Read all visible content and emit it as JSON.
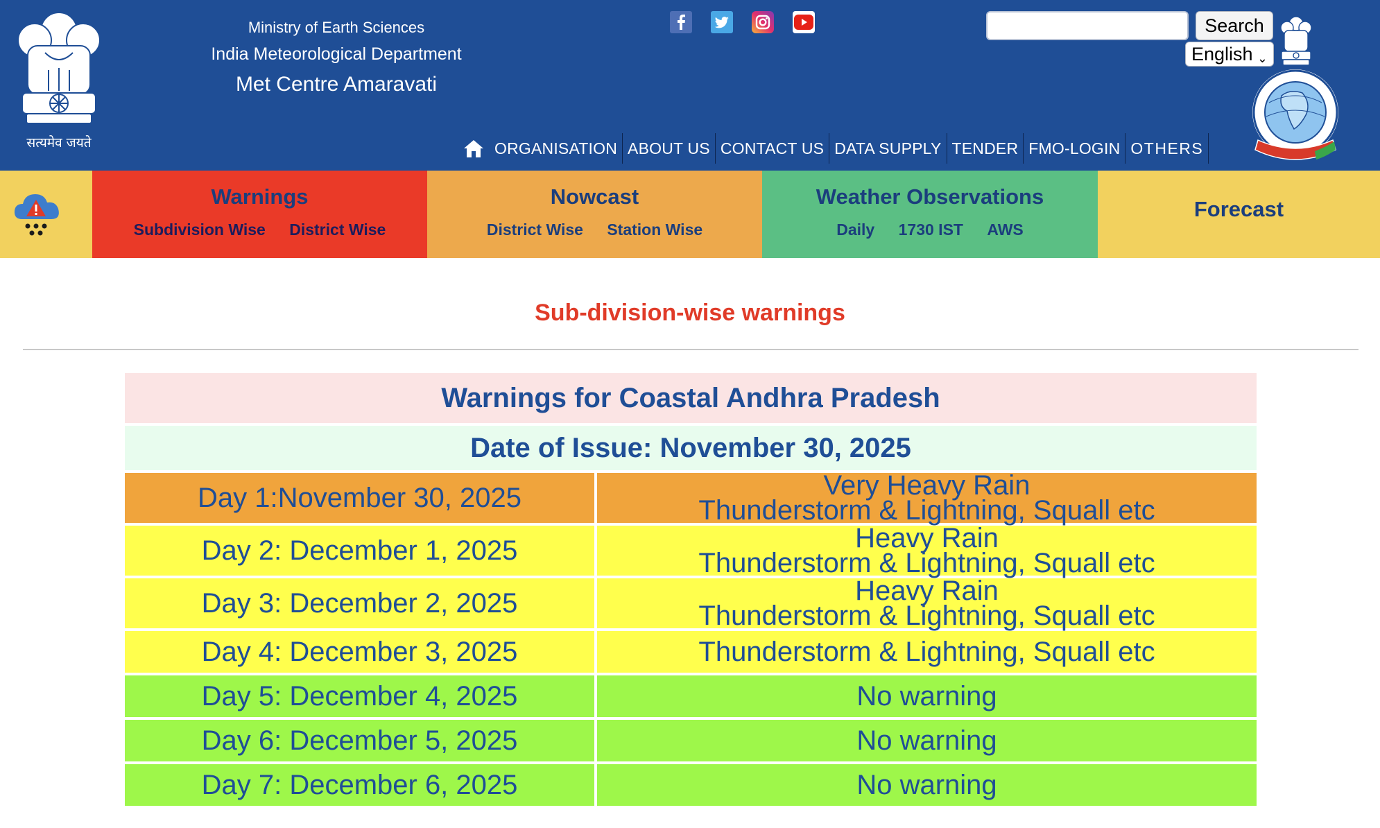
{
  "header": {
    "ministry": "Ministry of Earth Sciences",
    "department": "India Meteorological Department",
    "centre": "Met Centre Amaravati",
    "motto": "सत्यमेव जयते",
    "search_button": "Search",
    "search_placeholder": "",
    "language": "English",
    "social": [
      "facebook-icon",
      "twitter-icon",
      "instagram-icon",
      "youtube-icon"
    ],
    "nav": [
      "ORGANISATION",
      "ABOUT US",
      "CONTACT US",
      "DATA SUPPLY",
      "TENDER",
      "FMO-LOGIN",
      "OTHERS"
    ],
    "colors": {
      "header_bg": "#1f4e96"
    }
  },
  "tabs": {
    "warnings": {
      "title": "Warnings",
      "links": [
        "Subdivision Wise",
        "District Wise"
      ],
      "color": "#ea3a28"
    },
    "nowcast": {
      "title": "Nowcast",
      "links": [
        "District Wise",
        "Station Wise"
      ],
      "color": "#eda94c"
    },
    "observations": {
      "title": "Weather Observations",
      "links": [
        "Daily",
        "1730 IST",
        "AWS"
      ],
      "color": "#5bbf84"
    },
    "forecast": {
      "title": "Forecast",
      "color": "#f2d15e"
    }
  },
  "main": {
    "section_title": "Sub-division-wise warnings",
    "table_title": "Warnings for Coastal Andhra Pradesh",
    "issue_date": "Date of Issue: November 30, 2025",
    "rows": [
      {
        "day": "Day 1:November 30, 2025",
        "lines": [
          "Very Heavy Rain",
          "Thunderstorm & Lightning, Squall etc"
        ],
        "color": "#f0a43c"
      },
      {
        "day": "Day 2: December 1, 2025",
        "lines": [
          "Heavy Rain",
          "Thunderstorm & Lightning, Squall etc"
        ],
        "color": "#ffff4d"
      },
      {
        "day": "Day 3: December 2, 2025",
        "lines": [
          "Heavy Rain",
          "Thunderstorm & Lightning, Squall etc"
        ],
        "color": "#ffff4d"
      },
      {
        "day": "Day 4: December 3, 2025",
        "lines": [
          "Thunderstorm & Lightning, Squall etc"
        ],
        "color": "#ffff4d"
      },
      {
        "day": "Day 5: December 4, 2025",
        "lines": [
          "No warning"
        ],
        "color": "#9ef74a"
      },
      {
        "day": "Day 6: December 5, 2025",
        "lines": [
          "No warning"
        ],
        "color": "#9ef74a"
      },
      {
        "day": "Day 7: December 6, 2025",
        "lines": [
          "No warning"
        ],
        "color": "#9ef74a"
      }
    ]
  }
}
